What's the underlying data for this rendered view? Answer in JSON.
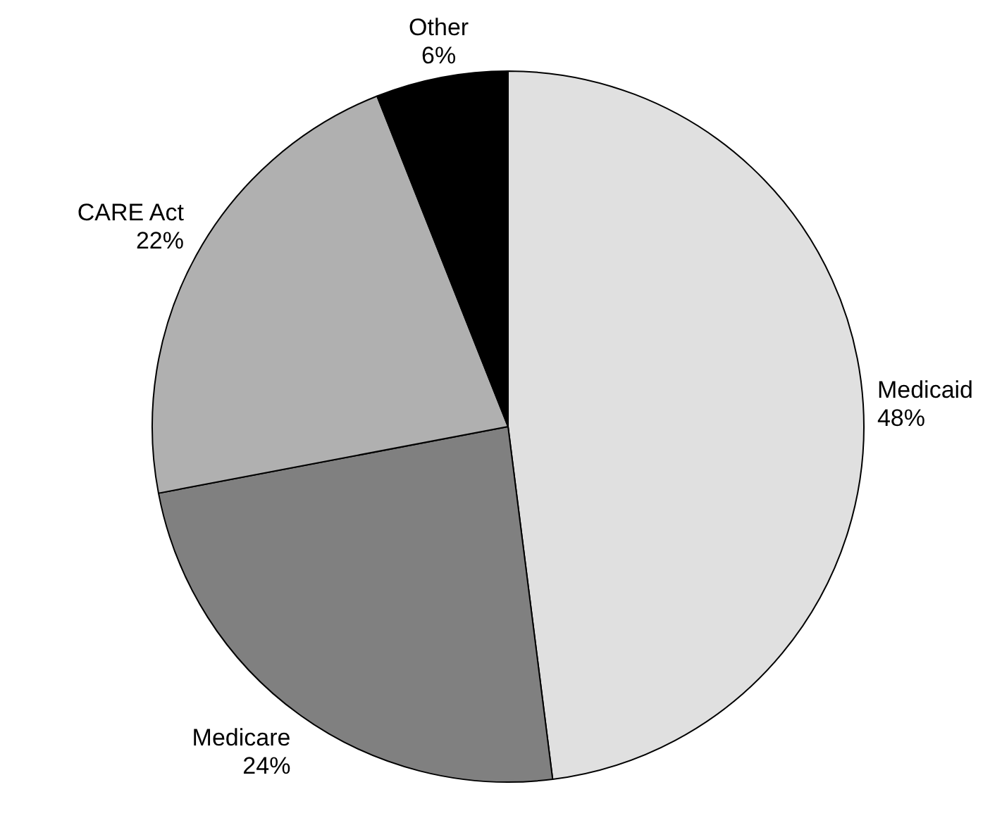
{
  "chart_data": {
    "type": "pie",
    "categories": [
      "Medicaid",
      "Medicare",
      "CARE Act",
      "Other"
    ],
    "values": [
      48,
      24,
      22,
      6
    ],
    "value_labels": [
      "48%",
      "24%",
      "22%",
      "6%"
    ],
    "colors": [
      "#e0e0e0",
      "#808080",
      "#b0b0b0",
      "#000000"
    ],
    "legend": false
  }
}
